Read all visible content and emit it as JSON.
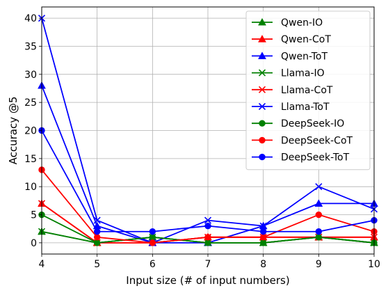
{
  "chart_data": {
    "type": "line",
    "title": "",
    "xlabel": "Input size (# of input numbers)",
    "ylabel": "Accuracy @5",
    "xlim": [
      4,
      10
    ],
    "ylim": [
      -2,
      42
    ],
    "xticks": [
      4,
      5,
      6,
      7,
      8,
      9,
      10
    ],
    "yticks": [
      0,
      5,
      10,
      15,
      20,
      25,
      30,
      35,
      40
    ],
    "grid": true,
    "legend_position": "top-right",
    "x": [
      4,
      5,
      6,
      7,
      8,
      9,
      10
    ],
    "series": [
      {
        "name": "Qwen-IO",
        "color": "#008000",
        "marker": "triangle",
        "values": [
          2,
          0,
          1,
          0,
          0,
          1,
          0
        ]
      },
      {
        "name": "Qwen-CoT",
        "color": "#ff0000",
        "marker": "triangle",
        "values": [
          7,
          0,
          0,
          1,
          1,
          1,
          1
        ]
      },
      {
        "name": "Qwen-ToT",
        "color": "#0000ff",
        "marker": "triangle",
        "values": [
          28,
          3,
          0,
          0,
          3,
          7,
          7
        ]
      },
      {
        "name": "Llama-IO",
        "color": "#008000",
        "marker": "x",
        "values": [
          2,
          0,
          1,
          0,
          0,
          1,
          0
        ]
      },
      {
        "name": "Llama-CoT",
        "color": "#ff0000",
        "marker": "x",
        "values": [
          7,
          0,
          0,
          1,
          1,
          1,
          1
        ]
      },
      {
        "name": "Llama-ToT",
        "color": "#0000ff",
        "marker": "x",
        "values": [
          40,
          4,
          0,
          4,
          3,
          10,
          6
        ]
      },
      {
        "name": "DeepSeek-IO",
        "color": "#008000",
        "marker": "circle",
        "values": [
          5,
          0,
          1,
          0,
          0,
          1,
          0
        ]
      },
      {
        "name": "DeepSeek-CoT",
        "color": "#ff0000",
        "marker": "circle",
        "values": [
          13,
          1,
          0,
          1,
          1,
          5,
          2
        ]
      },
      {
        "name": "DeepSeek-ToT",
        "color": "#0000ff",
        "marker": "circle",
        "values": [
          20,
          2,
          2,
          3,
          2,
          2,
          4
        ]
      }
    ]
  }
}
